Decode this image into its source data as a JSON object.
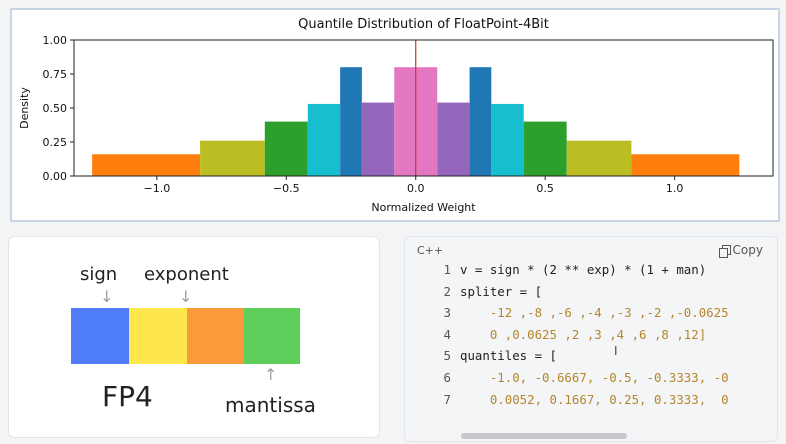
{
  "chart_data": {
    "type": "bar",
    "title": "Quantile Distribution of FloatPoint-4Bit",
    "xlabel": "Normalized Weight",
    "ylabel": "Density",
    "xlim": [
      -1.32,
      1.38
    ],
    "ylim": [
      0,
      1.0
    ],
    "xticks": [
      -1.0,
      -0.5,
      0.0,
      0.5,
      1.0
    ],
    "xtick_labels": [
      "−1.0",
      "−0.5",
      "0.0",
      "0.5",
      "1.0"
    ],
    "yticks": [
      0.0,
      0.25,
      0.5,
      0.75,
      1.0
    ],
    "ytick_labels": [
      "0.00",
      "0.25",
      "0.50",
      "0.75",
      "1.00"
    ],
    "vline_x": 0.0,
    "vline_color": "#c0392b",
    "grid": false,
    "bars": [
      {
        "x0": -1.25,
        "x1": -0.833,
        "value": 0.16,
        "color": "#ff7f0e"
      },
      {
        "x0": -0.833,
        "x1": -0.583,
        "value": 0.26,
        "color": "#bcbd22"
      },
      {
        "x0": -0.583,
        "x1": -0.417,
        "value": 0.4,
        "color": "#2ca02c"
      },
      {
        "x0": -0.417,
        "x1": -0.292,
        "value": 0.53,
        "color": "#17becf"
      },
      {
        "x0": -0.292,
        "x1": -0.208,
        "value": 0.8,
        "color": "#1f77b4"
      },
      {
        "x0": -0.208,
        "x1": -0.083,
        "value": 0.54,
        "color": "#9467bd"
      },
      {
        "x0": -0.083,
        "x1": 0.083,
        "value": 0.8,
        "color": "#e377c2"
      },
      {
        "x0": 0.083,
        "x1": 0.208,
        "value": 0.54,
        "color": "#9467bd"
      },
      {
        "x0": 0.208,
        "x1": 0.292,
        "value": 0.8,
        "color": "#1f77b4"
      },
      {
        "x0": 0.292,
        "x1": 0.417,
        "value": 0.53,
        "color": "#17becf"
      },
      {
        "x0": 0.417,
        "x1": 0.583,
        "value": 0.4,
        "color": "#2ca02c"
      },
      {
        "x0": 0.583,
        "x1": 0.833,
        "value": 0.26,
        "color": "#bcbd22"
      },
      {
        "x0": 0.833,
        "x1": 1.25,
        "value": 0.16,
        "color": "#ff7f0e"
      }
    ]
  },
  "fp4": {
    "title": "FP4",
    "sign_label": "sign",
    "exponent_label": "exponent",
    "mantissa_label": "mantissa",
    "segment_colors": [
      "#4f7cf7",
      "#fde74c",
      "#fb9a3a",
      "#5ecf5b"
    ]
  },
  "code": {
    "language": "C++",
    "copy_label": "Copy",
    "lines": [
      {
        "n": "1",
        "text": "v = sign * (2 ** exp) * (1 + man)",
        "kind": "code"
      },
      {
        "n": "2",
        "text": "spliter = [",
        "kind": "code"
      },
      {
        "n": "3",
        "text": "    -12 ,-8 ,-6 ,-4 ,-3 ,-2 ,-0.0625",
        "kind": "num"
      },
      {
        "n": "4",
        "text": "    0 ,0.0625 ,2 ,3 ,4 ,6 ,8 ,12]",
        "kind": "num"
      },
      {
        "n": "5",
        "text": "quantiles = [",
        "kind": "code"
      },
      {
        "n": "6",
        "text": "    -1.0, -0.6667, -0.5, -0.3333, -0",
        "kind": "num"
      },
      {
        "n": "7",
        "text": "    0.0052, 0.1667, 0.25, 0.3333,  0",
        "kind": "num"
      }
    ]
  }
}
